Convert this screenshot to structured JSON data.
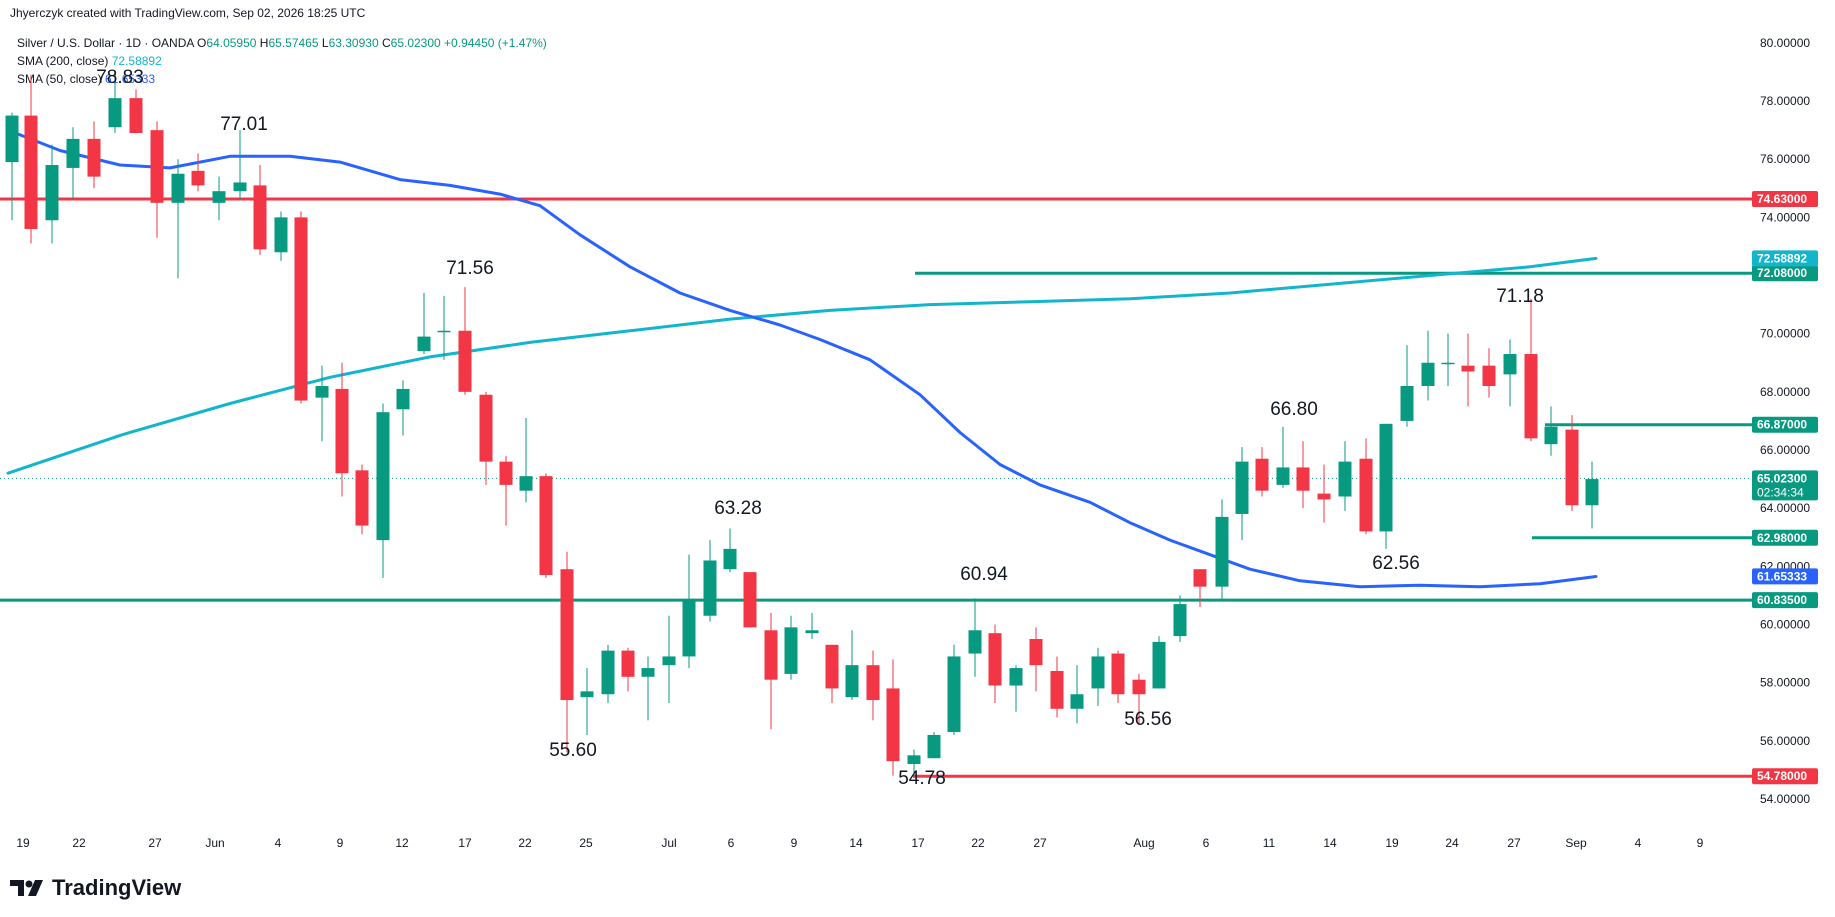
{
  "header": {
    "created_by": "Jhyerczyk created with TradingView.com, Sep 02, 2026 18:25 UTC"
  },
  "legend": {
    "symbol": "Silver / U.S. Dollar · 1D · OANDA",
    "open_label": "O",
    "open": "64.05950",
    "high_label": "H",
    "high": "65.57465",
    "low_label": "L",
    "low": "63.30930",
    "close_label": "C",
    "close": "65.02300",
    "change": "+0.94450 (+1.47%)",
    "sma200_label": "SMA (200, close)",
    "sma200_value": "72.58892",
    "sma50_label": "SMA (50, close)",
    "sma50_value": "61.65333"
  },
  "brand": {
    "name": "TradingView"
  },
  "colors": {
    "up": "#089981",
    "down": "#f23645",
    "sma200": "#12b5cb",
    "sma50": "#2962ff",
    "support": "#089981",
    "resistance": "#f23645",
    "text": "#131722",
    "grid": "#f0f3fa"
  },
  "chart_data": {
    "type": "candlestick",
    "ylim": [
      53.0,
      81.2
    ],
    "y_ticks": [
      "54.00000",
      "56.00000",
      "58.00000",
      "60.00000",
      "62.00000",
      "64.00000",
      "66.00000",
      "68.00000",
      "70.00000",
      "72.00000",
      "74.00000",
      "76.00000",
      "78.00000",
      "80.00000"
    ],
    "y_tick_values": [
      54,
      56,
      58,
      60,
      62,
      64,
      66,
      68,
      70,
      72,
      74,
      76,
      78,
      80
    ],
    "x_ticks": [
      {
        "label": "19",
        "x": 23
      },
      {
        "label": "22",
        "x": 79
      },
      {
        "label": "27",
        "x": 155
      },
      {
        "label": "Jun",
        "x": 215
      },
      {
        "label": "4",
        "x": 278
      },
      {
        "label": "9",
        "x": 340
      },
      {
        "label": "12",
        "x": 402
      },
      {
        "label": "17",
        "x": 465
      },
      {
        "label": "22",
        "x": 525
      },
      {
        "label": "25",
        "x": 586
      },
      {
        "label": "Jul",
        "x": 669
      },
      {
        "label": "6",
        "x": 731
      },
      {
        "label": "9",
        "x": 794
      },
      {
        "label": "14",
        "x": 856
      },
      {
        "label": "17",
        "x": 918
      },
      {
        "label": "22",
        "x": 978
      },
      {
        "label": "27",
        "x": 1040
      },
      {
        "label": "Aug",
        "x": 1144
      },
      {
        "label": "6",
        "x": 1206
      },
      {
        "label": "11",
        "x": 1269
      },
      {
        "label": "14",
        "x": 1330
      },
      {
        "label": "19",
        "x": 1392
      },
      {
        "label": "24",
        "x": 1452
      },
      {
        "label": "27",
        "x": 1514
      },
      {
        "label": "Sep",
        "x": 1576
      },
      {
        "label": "4",
        "x": 1638
      },
      {
        "label": "9",
        "x": 1700
      }
    ],
    "candles": [
      {
        "x": 12,
        "o": 75.9,
        "h": 77.6,
        "l": 73.9,
        "c": 77.5
      },
      {
        "x": 31,
        "o": 77.5,
        "h": 78.9,
        "l": 73.1,
        "c": 73.6
      },
      {
        "x": 52,
        "o": 73.9,
        "h": 76.5,
        "l": 73.1,
        "c": 75.8
      },
      {
        "x": 73,
        "o": 75.7,
        "h": 77.1,
        "l": 74.6,
        "c": 76.7
      },
      {
        "x": 94,
        "o": 76.7,
        "h": 77.3,
        "l": 75.0,
        "c": 75.4
      },
      {
        "x": 115,
        "o": 77.1,
        "h": 78.8,
        "l": 76.9,
        "c": 78.1
      },
      {
        "x": 136,
        "o": 78.1,
        "h": 78.4,
        "l": 76.9,
        "c": 76.9
      },
      {
        "x": 157,
        "o": 77.0,
        "h": 77.3,
        "l": 73.3,
        "c": 74.5
      },
      {
        "x": 178,
        "o": 74.5,
        "h": 76.0,
        "l": 71.9,
        "c": 75.5
      },
      {
        "x": 198,
        "o": 75.6,
        "h": 76.2,
        "l": 74.9,
        "c": 75.1
      },
      {
        "x": 219,
        "o": 74.5,
        "h": 75.4,
        "l": 73.9,
        "c": 74.9
      },
      {
        "x": 240,
        "o": 74.9,
        "h": 77.0,
        "l": 74.6,
        "c": 75.2
      },
      {
        "x": 260,
        "o": 75.1,
        "h": 75.8,
        "l": 72.7,
        "c": 72.9
      },
      {
        "x": 281,
        "o": 72.8,
        "h": 74.2,
        "l": 72.5,
        "c": 74.0
      },
      {
        "x": 301,
        "o": 74.0,
        "h": 74.2,
        "l": 67.6,
        "c": 67.7
      },
      {
        "x": 322,
        "o": 67.8,
        "h": 68.9,
        "l": 66.3,
        "c": 68.2
      },
      {
        "x": 342,
        "o": 68.1,
        "h": 69.0,
        "l": 64.4,
        "c": 65.2
      },
      {
        "x": 362,
        "o": 65.3,
        "h": 65.5,
        "l": 63.1,
        "c": 63.4
      },
      {
        "x": 383,
        "o": 62.9,
        "h": 67.6,
        "l": 61.6,
        "c": 67.3
      },
      {
        "x": 403,
        "o": 67.4,
        "h": 68.4,
        "l": 66.5,
        "c": 68.1
      },
      {
        "x": 424,
        "o": 69.4,
        "h": 71.4,
        "l": 69.3,
        "c": 69.9
      },
      {
        "x": 444,
        "o": 70.1,
        "h": 71.3,
        "l": 69.1,
        "c": 70.1
      },
      {
        "x": 465,
        "o": 70.1,
        "h": 71.6,
        "l": 67.9,
        "c": 68.0
      },
      {
        "x": 486,
        "o": 67.9,
        "h": 68.0,
        "l": 64.8,
        "c": 65.6
      },
      {
        "x": 506,
        "o": 65.6,
        "h": 65.8,
        "l": 63.4,
        "c": 64.8
      },
      {
        "x": 526,
        "o": 64.6,
        "h": 67.1,
        "l": 64.2,
        "c": 65.1
      },
      {
        "x": 546,
        "o": 65.1,
        "h": 65.2,
        "l": 61.6,
        "c": 61.7
      },
      {
        "x": 567,
        "o": 61.9,
        "h": 62.5,
        "l": 55.6,
        "c": 57.4
      },
      {
        "x": 587,
        "o": 57.5,
        "h": 58.5,
        "l": 56.2,
        "c": 57.7
      },
      {
        "x": 608,
        "o": 57.6,
        "h": 59.3,
        "l": 57.3,
        "c": 59.1
      },
      {
        "x": 628,
        "o": 59.1,
        "h": 59.2,
        "l": 57.7,
        "c": 58.2
      },
      {
        "x": 648,
        "o": 58.2,
        "h": 58.9,
        "l": 56.7,
        "c": 58.5
      },
      {
        "x": 669,
        "o": 58.6,
        "h": 60.3,
        "l": 57.3,
        "c": 58.9
      },
      {
        "x": 689,
        "o": 58.9,
        "h": 62.4,
        "l": 58.5,
        "c": 60.8
      },
      {
        "x": 710,
        "o": 60.3,
        "h": 62.9,
        "l": 60.1,
        "c": 62.2
      },
      {
        "x": 730,
        "o": 61.9,
        "h": 63.3,
        "l": 61.8,
        "c": 62.6
      },
      {
        "x": 750,
        "o": 61.8,
        "h": 61.8,
        "l": 59.9,
        "c": 59.9
      },
      {
        "x": 771,
        "o": 59.8,
        "h": 60.4,
        "l": 56.4,
        "c": 58.1
      },
      {
        "x": 791,
        "o": 58.3,
        "h": 60.3,
        "l": 58.1,
        "c": 59.9
      },
      {
        "x": 812,
        "o": 59.7,
        "h": 60.4,
        "l": 59.5,
        "c": 59.8
      },
      {
        "x": 832,
        "o": 59.3,
        "h": 59.3,
        "l": 57.3,
        "c": 57.8
      },
      {
        "x": 852,
        "o": 57.5,
        "h": 59.8,
        "l": 57.4,
        "c": 58.6
      },
      {
        "x": 873,
        "o": 58.6,
        "h": 59.1,
        "l": 56.7,
        "c": 57.4
      },
      {
        "x": 893,
        "o": 57.8,
        "h": 58.8,
        "l": 54.8,
        "c": 55.3
      },
      {
        "x": 914,
        "o": 55.2,
        "h": 55.7,
        "l": 54.8,
        "c": 55.5
      },
      {
        "x": 934,
        "o": 55.4,
        "h": 56.3,
        "l": 55.4,
        "c": 56.2
      },
      {
        "x": 954,
        "o": 56.3,
        "h": 59.3,
        "l": 56.2,
        "c": 58.9
      },
      {
        "x": 975,
        "o": 59.0,
        "h": 60.9,
        "l": 58.2,
        "c": 59.8
      },
      {
        "x": 995,
        "o": 59.7,
        "h": 60.0,
        "l": 57.3,
        "c": 57.9
      },
      {
        "x": 1016,
        "o": 57.9,
        "h": 58.6,
        "l": 57.0,
        "c": 58.5
      },
      {
        "x": 1036,
        "o": 59.5,
        "h": 59.9,
        "l": 57.7,
        "c": 58.6
      },
      {
        "x": 1057,
        "o": 58.4,
        "h": 58.9,
        "l": 56.8,
        "c": 57.1
      },
      {
        "x": 1077,
        "o": 57.1,
        "h": 58.6,
        "l": 56.6,
        "c": 57.6
      },
      {
        "x": 1098,
        "o": 57.8,
        "h": 59.2,
        "l": 57.2,
        "c": 58.9
      },
      {
        "x": 1118,
        "o": 59.0,
        "h": 59.1,
        "l": 57.3,
        "c": 57.6
      },
      {
        "x": 1139,
        "o": 58.1,
        "h": 58.3,
        "l": 56.6,
        "c": 57.6
      },
      {
        "x": 1159,
        "o": 57.8,
        "h": 59.6,
        "l": 57.8,
        "c": 59.4
      },
      {
        "x": 1180,
        "o": 59.6,
        "h": 61.0,
        "l": 59.4,
        "c": 60.7
      },
      {
        "x": 1200,
        "o": 61.9,
        "h": 61.9,
        "l": 60.6,
        "c": 61.3
      },
      {
        "x": 1222,
        "o": 61.3,
        "h": 64.3,
        "l": 60.8,
        "c": 63.7
      },
      {
        "x": 1242,
        "o": 63.8,
        "h": 66.1,
        "l": 62.9,
        "c": 65.6
      },
      {
        "x": 1262,
        "o": 65.7,
        "h": 66.1,
        "l": 64.4,
        "c": 64.6
      },
      {
        "x": 1283,
        "o": 64.8,
        "h": 66.8,
        "l": 64.7,
        "c": 65.4
      },
      {
        "x": 1303,
        "o": 65.4,
        "h": 66.3,
        "l": 64.0,
        "c": 64.6
      },
      {
        "x": 1324,
        "o": 64.5,
        "h": 65.5,
        "l": 63.5,
        "c": 64.3
      },
      {
        "x": 1345,
        "o": 64.4,
        "h": 66.3,
        "l": 63.9,
        "c": 65.6
      },
      {
        "x": 1366,
        "o": 65.7,
        "h": 66.4,
        "l": 63.1,
        "c": 63.2
      },
      {
        "x": 1386,
        "o": 63.2,
        "h": 66.9,
        "l": 62.6,
        "c": 66.9
      },
      {
        "x": 1407,
        "o": 67.0,
        "h": 69.6,
        "l": 66.8,
        "c": 68.2
      },
      {
        "x": 1428,
        "o": 68.2,
        "h": 70.1,
        "l": 67.7,
        "c": 69.0
      },
      {
        "x": 1448,
        "o": 69.0,
        "h": 70.0,
        "l": 68.2,
        "c": 69.0
      },
      {
        "x": 1468,
        "o": 68.9,
        "h": 70.0,
        "l": 67.5,
        "c": 68.7
      },
      {
        "x": 1489,
        "o": 68.9,
        "h": 69.5,
        "l": 67.8,
        "c": 68.2
      },
      {
        "x": 1510,
        "o": 68.6,
        "h": 69.8,
        "l": 67.5,
        "c": 69.3
      },
      {
        "x": 1531,
        "o": 69.3,
        "h": 71.2,
        "l": 66.3,
        "c": 66.4
      },
      {
        "x": 1551,
        "o": 66.2,
        "h": 67.5,
        "l": 65.8,
        "c": 66.8
      },
      {
        "x": 1572,
        "o": 66.7,
        "h": 67.2,
        "l": 63.9,
        "c": 64.1
      },
      {
        "x": 1592,
        "o": 64.1,
        "h": 65.6,
        "l": 63.3,
        "c": 65.0
      }
    ],
    "sma200": [
      {
        "x": 8,
        "y": 65.2
      },
      {
        "x": 120,
        "y": 66.5
      },
      {
        "x": 230,
        "y": 67.6
      },
      {
        "x": 330,
        "y": 68.5
      },
      {
        "x": 430,
        "y": 69.2
      },
      {
        "x": 530,
        "y": 69.7
      },
      {
        "x": 630,
        "y": 70.1
      },
      {
        "x": 730,
        "y": 70.5
      },
      {
        "x": 830,
        "y": 70.8
      },
      {
        "x": 930,
        "y": 71.0
      },
      {
        "x": 1030,
        "y": 71.1
      },
      {
        "x": 1130,
        "y": 71.2
      },
      {
        "x": 1230,
        "y": 71.4
      },
      {
        "x": 1330,
        "y": 71.7
      },
      {
        "x": 1430,
        "y": 72.0
      },
      {
        "x": 1530,
        "y": 72.3
      },
      {
        "x": 1596,
        "y": 72.59
      }
    ],
    "sma50": [
      {
        "x": 8,
        "y": 77.0
      },
      {
        "x": 60,
        "y": 76.3
      },
      {
        "x": 120,
        "y": 75.8
      },
      {
        "x": 170,
        "y": 75.7
      },
      {
        "x": 230,
        "y": 76.1
      },
      {
        "x": 290,
        "y": 76.1
      },
      {
        "x": 340,
        "y": 75.9
      },
      {
        "x": 400,
        "y": 75.3
      },
      {
        "x": 450,
        "y": 75.1
      },
      {
        "x": 500,
        "y": 74.8
      },
      {
        "x": 540,
        "y": 74.4
      },
      {
        "x": 580,
        "y": 73.4
      },
      {
        "x": 630,
        "y": 72.3
      },
      {
        "x": 680,
        "y": 71.4
      },
      {
        "x": 730,
        "y": 70.8
      },
      {
        "x": 780,
        "y": 70.3
      },
      {
        "x": 820,
        "y": 69.8
      },
      {
        "x": 870,
        "y": 69.1
      },
      {
        "x": 920,
        "y": 67.9
      },
      {
        "x": 960,
        "y": 66.6
      },
      {
        "x": 1000,
        "y": 65.5
      },
      {
        "x": 1040,
        "y": 64.8
      },
      {
        "x": 1090,
        "y": 64.2
      },
      {
        "x": 1130,
        "y": 63.5
      },
      {
        "x": 1170,
        "y": 62.9
      },
      {
        "x": 1210,
        "y": 62.4
      },
      {
        "x": 1250,
        "y": 61.9
      },
      {
        "x": 1300,
        "y": 61.5
      },
      {
        "x": 1360,
        "y": 61.3
      },
      {
        "x": 1420,
        "y": 61.35
      },
      {
        "x": 1480,
        "y": 61.3
      },
      {
        "x": 1540,
        "y": 61.4
      },
      {
        "x": 1596,
        "y": 61.65
      }
    ],
    "horizontal_lines": [
      {
        "name": "resistance-74.63",
        "value": 74.63,
        "tag": "74.63000",
        "color": "#f23645",
        "x1": 0,
        "x2": 1752,
        "width": 3
      },
      {
        "name": "level-72.08",
        "value": 72.08,
        "tag": "72.08000",
        "color": "#089981",
        "x1": 915,
        "x2": 1752,
        "width": 3
      },
      {
        "name": "level-66.87",
        "value": 66.87,
        "tag": "66.87000",
        "color": "#089981",
        "x1": 1545,
        "x2": 1752,
        "width": 3
      },
      {
        "name": "level-62.98",
        "value": 62.98,
        "tag": "62.98000",
        "color": "#089981",
        "x1": 1532,
        "x2": 1752,
        "width": 3
      },
      {
        "name": "support-60.835",
        "value": 60.835,
        "tag": "60.83500",
        "color": "#089981",
        "x1": 0,
        "x2": 1752,
        "width": 3
      },
      {
        "name": "support-54.78",
        "value": 54.78,
        "tag": "54.78000",
        "color": "#f23645",
        "x1": 913,
        "x2": 1752,
        "width": 3
      }
    ],
    "current_price": {
      "value": 65.023,
      "tag": "65.02300",
      "countdown": "02:34:34",
      "color": "#089981"
    },
    "sma_tags": [
      {
        "value": 72.58892,
        "tag": "72.58892",
        "color": "#12b5cb"
      },
      {
        "value": 61.65333,
        "tag": "61.65333",
        "color": "#2962ff"
      }
    ],
    "annotations": [
      {
        "text": "78.83",
        "x": 120,
        "y": 83
      },
      {
        "text": "77.01",
        "x": 244,
        "y": 130
      },
      {
        "text": "71.56",
        "x": 470,
        "y": 274
      },
      {
        "text": "63.28",
        "x": 738,
        "y": 514
      },
      {
        "text": "55.60",
        "x": 573,
        "y": 756
      },
      {
        "text": "60.94",
        "x": 984,
        "y": 580
      },
      {
        "text": "54.78",
        "x": 922,
        "y": 784
      },
      {
        "text": "56.56",
        "x": 1148,
        "y": 725
      },
      {
        "text": "66.80",
        "x": 1294,
        "y": 415
      },
      {
        "text": "62.56",
        "x": 1396,
        "y": 569
      },
      {
        "text": "71.18",
        "x": 1520,
        "y": 302
      }
    ]
  }
}
